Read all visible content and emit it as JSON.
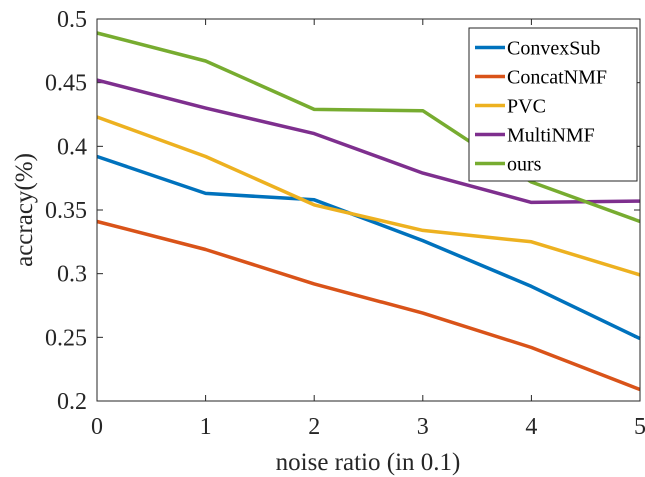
{
  "chart_data": {
    "type": "line",
    "title": "",
    "xlabel": "noise ratio (in 0.1)",
    "ylabel": "accracy(%)",
    "x": [
      0,
      1,
      2,
      3,
      4,
      5
    ],
    "xlim": [
      0,
      5
    ],
    "ylim": [
      0.2,
      0.5
    ],
    "xticks": [
      "0",
      "1",
      "2",
      "3",
      "4",
      "5"
    ],
    "yticks": [
      "0.2",
      "0.25",
      "0.3",
      "0.35",
      "0.4",
      "0.45",
      "0.5"
    ],
    "grid": false,
    "legend_position": "top-right",
    "series": [
      {
        "name": "ConvexSub",
        "color": "#0072BD",
        "values": [
          0.392,
          0.363,
          0.358,
          0.326,
          0.29,
          0.249
        ]
      },
      {
        "name": "ConcatNMF",
        "color": "#D95319",
        "values": [
          0.341,
          0.319,
          0.292,
          0.269,
          0.242,
          0.209
        ]
      },
      {
        "name": "PVC",
        "color": "#EDB120",
        "values": [
          0.423,
          0.392,
          0.354,
          0.334,
          0.325,
          0.299
        ]
      },
      {
        "name": "MultiNMF",
        "color": "#7E2F8E",
        "values": [
          0.452,
          0.43,
          0.41,
          0.379,
          0.356,
          0.357
        ]
      },
      {
        "name": "ours",
        "color": "#77AC30",
        "values": [
          0.489,
          0.467,
          0.429,
          0.428,
          0.372,
          0.341
        ]
      }
    ]
  }
}
